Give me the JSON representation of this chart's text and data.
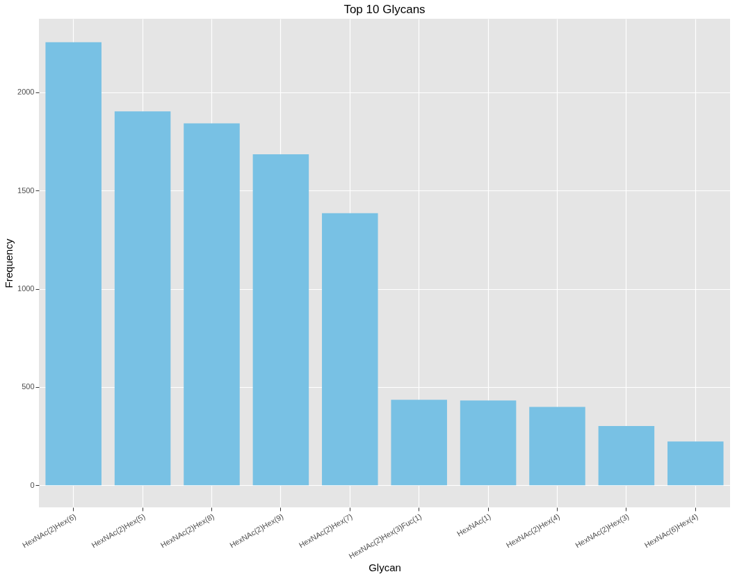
{
  "chart_data": {
    "type": "bar",
    "title": "Top 10 Glycans",
    "xlabel": "Glycan",
    "ylabel": "Frequency",
    "categories": [
      "HexNAc(2)Hex(6)",
      "HexNAc(2)Hex(5)",
      "HexNAc(2)Hex(8)",
      "HexNAc(2)Hex(9)",
      "HexNAc(2)Hex(7)",
      "HexNAc(2)Hex(3)Fuc(1)",
      "HexNAc(1)",
      "HexNAc(2)Hex(4)",
      "HexNAc(2)Hex(3)",
      "HexNAc(6)Hex(4)"
    ],
    "values": [
      2255,
      1903,
      1842,
      1684,
      1385,
      435,
      432,
      399,
      302,
      223
    ],
    "color": "#78c1e4",
    "ylim": [
      -112,
      2374
    ],
    "yticks": [
      0,
      500,
      1000,
      1500,
      2000
    ],
    "grid": true
  }
}
